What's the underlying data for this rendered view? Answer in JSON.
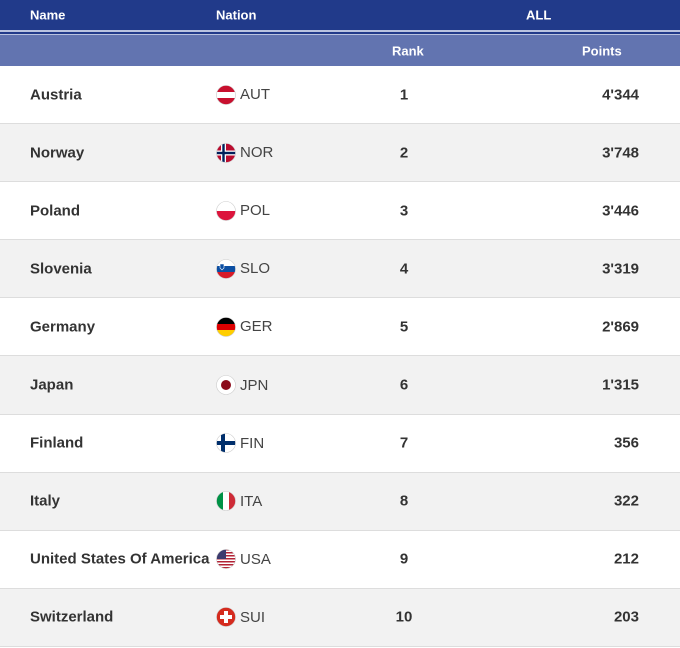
{
  "header": {
    "name": "Name",
    "nation": "Nation",
    "all": "ALL",
    "rank": "Rank",
    "points": "Points"
  },
  "rows": [
    {
      "name": "Austria",
      "code": "AUT",
      "rank": "1",
      "points": "4'344",
      "flag": "aut"
    },
    {
      "name": "Norway",
      "code": "NOR",
      "rank": "2",
      "points": "3'748",
      "flag": "nor"
    },
    {
      "name": "Poland",
      "code": "POL",
      "rank": "3",
      "points": "3'446",
      "flag": "pol"
    },
    {
      "name": "Slovenia",
      "code": "SLO",
      "rank": "4",
      "points": "3'319",
      "flag": "slo"
    },
    {
      "name": "Germany",
      "code": "GER",
      "rank": "5",
      "points": "2'869",
      "flag": "ger"
    },
    {
      "name": "Japan",
      "code": "JPN",
      "rank": "6",
      "points": "1'315",
      "flag": "jpn"
    },
    {
      "name": "Finland",
      "code": "FIN",
      "rank": "7",
      "points": "356",
      "flag": "fin"
    },
    {
      "name": "Italy",
      "code": "ITA",
      "rank": "8",
      "points": "322",
      "flag": "ita"
    },
    {
      "name": "United States Of America",
      "code": "USA",
      "rank": "9",
      "points": "212",
      "flag": "usa"
    },
    {
      "name": "Switzerland",
      "code": "SUI",
      "rank": "10",
      "points": "203",
      "flag": "sui"
    }
  ]
}
